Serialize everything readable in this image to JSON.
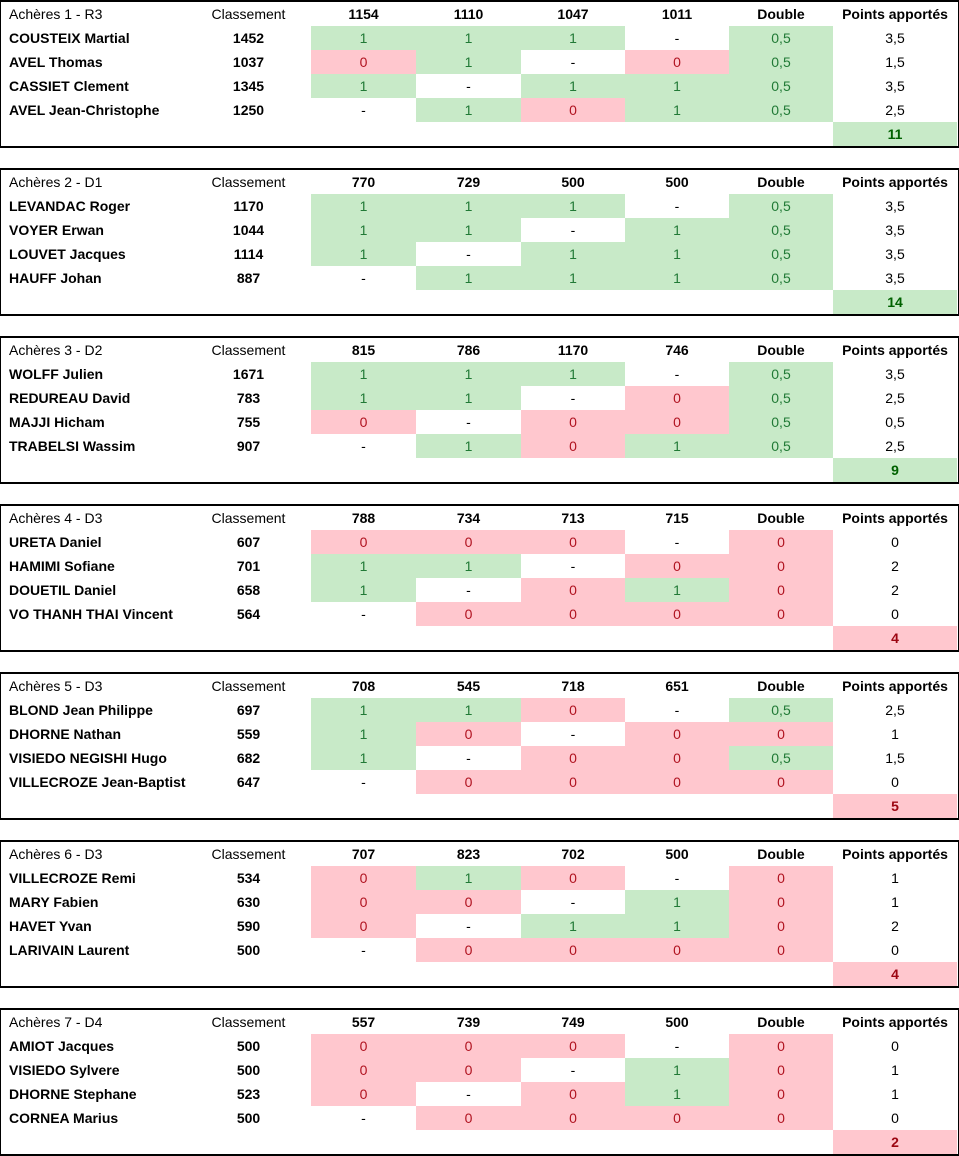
{
  "labels": {
    "classement": "Classement",
    "double": "Double",
    "points": "Points apportés"
  },
  "colors": {
    "win_bg": "#c8eac8",
    "win_text": "#217a36",
    "win_total_text": "#006100",
    "loss_bg": "#ffc7ce",
    "loss_text": "#b01320",
    "loss_total_text": "#9c0612",
    "border": "#000000"
  },
  "blocks": [
    {
      "title": "Achères 1 - R3",
      "opponents": [
        "1154",
        "1110",
        "1047",
        "1011"
      ],
      "players": [
        {
          "name": "COUSTEIX Martial",
          "classement": "1452",
          "results": [
            {
              "v": "1",
              "s": "w"
            },
            {
              "v": "1",
              "s": "w"
            },
            {
              "v": "1",
              "s": "w"
            },
            {
              "v": "-",
              "s": "n"
            },
            {
              "v": "0,5",
              "s": "w"
            }
          ],
          "points": "3,5"
        },
        {
          "name": "AVEL Thomas",
          "classement": "1037",
          "results": [
            {
              "v": "0",
              "s": "l"
            },
            {
              "v": "1",
              "s": "w"
            },
            {
              "v": "-",
              "s": "n"
            },
            {
              "v": "0",
              "s": "l"
            },
            {
              "v": "0,5",
              "s": "w"
            }
          ],
          "points": "1,5"
        },
        {
          "name": "CASSIET Clement",
          "classement": "1345",
          "results": [
            {
              "v": "1",
              "s": "w"
            },
            {
              "v": "-",
              "s": "n"
            },
            {
              "v": "1",
              "s": "w"
            },
            {
              "v": "1",
              "s": "w"
            },
            {
              "v": "0,5",
              "s": "w"
            }
          ],
          "points": "3,5"
        },
        {
          "name": "AVEL Jean-Christophe",
          "classement": "1250",
          "results": [
            {
              "v": "-",
              "s": "n"
            },
            {
              "v": "1",
              "s": "w"
            },
            {
              "v": "0",
              "s": "l"
            },
            {
              "v": "1",
              "s": "w"
            },
            {
              "v": "0,5",
              "s": "w"
            }
          ],
          "points": "2,5"
        }
      ],
      "total": {
        "value": "11",
        "s": "w"
      }
    },
    {
      "title": "Achères 2 - D1",
      "opponents": [
        "770",
        "729",
        "500",
        "500"
      ],
      "players": [
        {
          "name": "LEVANDAC Roger",
          "classement": "1170",
          "results": [
            {
              "v": "1",
              "s": "w"
            },
            {
              "v": "1",
              "s": "w"
            },
            {
              "v": "1",
              "s": "w"
            },
            {
              "v": "-",
              "s": "n"
            },
            {
              "v": "0,5",
              "s": "w"
            }
          ],
          "points": "3,5"
        },
        {
          "name": "VOYER Erwan",
          "classement": "1044",
          "results": [
            {
              "v": "1",
              "s": "w"
            },
            {
              "v": "1",
              "s": "w"
            },
            {
              "v": "-",
              "s": "n"
            },
            {
              "v": "1",
              "s": "w"
            },
            {
              "v": "0,5",
              "s": "w"
            }
          ],
          "points": "3,5"
        },
        {
          "name": "LOUVET Jacques",
          "classement": "1114",
          "results": [
            {
              "v": "1",
              "s": "w"
            },
            {
              "v": "-",
              "s": "n"
            },
            {
              "v": "1",
              "s": "w"
            },
            {
              "v": "1",
              "s": "w"
            },
            {
              "v": "0,5",
              "s": "w"
            }
          ],
          "points": "3,5"
        },
        {
          "name": "HAUFF Johan",
          "classement": "887",
          "results": [
            {
              "v": "-",
              "s": "n"
            },
            {
              "v": "1",
              "s": "w"
            },
            {
              "v": "1",
              "s": "w"
            },
            {
              "v": "1",
              "s": "w"
            },
            {
              "v": "0,5",
              "s": "w"
            }
          ],
          "points": "3,5"
        }
      ],
      "total": {
        "value": "14",
        "s": "w"
      }
    },
    {
      "title": "Achères 3 - D2",
      "opponents": [
        "815",
        "786",
        "1170",
        "746"
      ],
      "players": [
        {
          "name": "WOLFF Julien",
          "classement": "1671",
          "results": [
            {
              "v": "1",
              "s": "w"
            },
            {
              "v": "1",
              "s": "w"
            },
            {
              "v": "1",
              "s": "w"
            },
            {
              "v": "-",
              "s": "n"
            },
            {
              "v": "0,5",
              "s": "w"
            }
          ],
          "points": "3,5"
        },
        {
          "name": "REDUREAU David",
          "classement": "783",
          "results": [
            {
              "v": "1",
              "s": "w"
            },
            {
              "v": "1",
              "s": "w"
            },
            {
              "v": "-",
              "s": "n"
            },
            {
              "v": "0",
              "s": "l"
            },
            {
              "v": "0,5",
              "s": "w"
            }
          ],
          "points": "2,5"
        },
        {
          "name": "MAJJI Hicham",
          "classement": "755",
          "results": [
            {
              "v": "0",
              "s": "l"
            },
            {
              "v": "-",
              "s": "n"
            },
            {
              "v": "0",
              "s": "l"
            },
            {
              "v": "0",
              "s": "l"
            },
            {
              "v": "0,5",
              "s": "w"
            }
          ],
          "points": "0,5"
        },
        {
          "name": "TRABELSI Wassim",
          "classement": "907",
          "results": [
            {
              "v": "-",
              "s": "n"
            },
            {
              "v": "1",
              "s": "w"
            },
            {
              "v": "0",
              "s": "l"
            },
            {
              "v": "1",
              "s": "w"
            },
            {
              "v": "0,5",
              "s": "w"
            }
          ],
          "points": "2,5"
        }
      ],
      "total": {
        "value": "9",
        "s": "w"
      }
    },
    {
      "title": "Achères 4 - D3",
      "opponents": [
        "788",
        "734",
        "713",
        "715"
      ],
      "players": [
        {
          "name": "URETA Daniel",
          "classement": "607",
          "results": [
            {
              "v": "0",
              "s": "l"
            },
            {
              "v": "0",
              "s": "l"
            },
            {
              "v": "0",
              "s": "l"
            },
            {
              "v": "-",
              "s": "n"
            },
            {
              "v": "0",
              "s": "l"
            }
          ],
          "points": "0"
        },
        {
          "name": "HAMIMI Sofiane",
          "classement": "701",
          "results": [
            {
              "v": "1",
              "s": "w"
            },
            {
              "v": "1",
              "s": "w"
            },
            {
              "v": "-",
              "s": "n"
            },
            {
              "v": "0",
              "s": "l"
            },
            {
              "v": "0",
              "s": "l"
            }
          ],
          "points": "2"
        },
        {
          "name": "DOUETIL Daniel",
          "classement": "658",
          "results": [
            {
              "v": "1",
              "s": "w"
            },
            {
              "v": "-",
              "s": "n"
            },
            {
              "v": "0",
              "s": "l"
            },
            {
              "v": "1",
              "s": "w"
            },
            {
              "v": "0",
              "s": "l"
            }
          ],
          "points": "2"
        },
        {
          "name": "VO THANH THAI Vincent",
          "classement": "564",
          "results": [
            {
              "v": "-",
              "s": "n"
            },
            {
              "v": "0",
              "s": "l"
            },
            {
              "v": "0",
              "s": "l"
            },
            {
              "v": "0",
              "s": "l"
            },
            {
              "v": "0",
              "s": "l"
            }
          ],
          "points": "0"
        }
      ],
      "total": {
        "value": "4",
        "s": "l"
      }
    },
    {
      "title": "Achères 5 - D3",
      "opponents": [
        "708",
        "545",
        "718",
        "651"
      ],
      "players": [
        {
          "name": "BLOND Jean Philippe",
          "classement": "697",
          "results": [
            {
              "v": "1",
              "s": "w"
            },
            {
              "v": "1",
              "s": "w"
            },
            {
              "v": "0",
              "s": "l"
            },
            {
              "v": "-",
              "s": "n"
            },
            {
              "v": "0,5",
              "s": "w"
            }
          ],
          "points": "2,5"
        },
        {
          "name": "DHORNE Nathan",
          "classement": "559",
          "results": [
            {
              "v": "1",
              "s": "w"
            },
            {
              "v": "0",
              "s": "l"
            },
            {
              "v": "-",
              "s": "n"
            },
            {
              "v": "0",
              "s": "l"
            },
            {
              "v": "0",
              "s": "l"
            }
          ],
          "points": "1"
        },
        {
          "name": "VISIEDO NEGISHI Hugo",
          "classement": "682",
          "results": [
            {
              "v": "1",
              "s": "w"
            },
            {
              "v": "-",
              "s": "n"
            },
            {
              "v": "0",
              "s": "l"
            },
            {
              "v": "0",
              "s": "l"
            },
            {
              "v": "0,5",
              "s": "w"
            }
          ],
          "points": "1,5"
        },
        {
          "name": "VILLECROZE Jean-Baptiste",
          "classement": "647",
          "results": [
            {
              "v": "-",
              "s": "n"
            },
            {
              "v": "0",
              "s": "l"
            },
            {
              "v": "0",
              "s": "l"
            },
            {
              "v": "0",
              "s": "l"
            },
            {
              "v": "0",
              "s": "l"
            }
          ],
          "points": "0"
        }
      ],
      "total": {
        "value": "5",
        "s": "l"
      }
    },
    {
      "title": "Achères 6 - D3",
      "opponents": [
        "707",
        "823",
        "702",
        "500"
      ],
      "players": [
        {
          "name": "VILLECROZE Remi",
          "classement": "534",
          "results": [
            {
              "v": "0",
              "s": "l"
            },
            {
              "v": "1",
              "s": "w"
            },
            {
              "v": "0",
              "s": "l"
            },
            {
              "v": "-",
              "s": "n"
            },
            {
              "v": "0",
              "s": "l"
            }
          ],
          "points": "1"
        },
        {
          "name": "MARY Fabien",
          "classement": "630",
          "results": [
            {
              "v": "0",
              "s": "l"
            },
            {
              "v": "0",
              "s": "l"
            },
            {
              "v": "-",
              "s": "n"
            },
            {
              "v": "1",
              "s": "w"
            },
            {
              "v": "0",
              "s": "l"
            }
          ],
          "points": "1"
        },
        {
          "name": "HAVET Yvan",
          "classement": "590",
          "results": [
            {
              "v": "0",
              "s": "l"
            },
            {
              "v": "-",
              "s": "n"
            },
            {
              "v": "1",
              "s": "w"
            },
            {
              "v": "1",
              "s": "w"
            },
            {
              "v": "0",
              "s": "l"
            }
          ],
          "points": "2"
        },
        {
          "name": "LARIVAIN Laurent",
          "classement": "500",
          "results": [
            {
              "v": "-",
              "s": "n"
            },
            {
              "v": "0",
              "s": "l"
            },
            {
              "v": "0",
              "s": "l"
            },
            {
              "v": "0",
              "s": "l"
            },
            {
              "v": "0",
              "s": "l"
            }
          ],
          "points": "0"
        }
      ],
      "total": {
        "value": "4",
        "s": "l"
      }
    },
    {
      "title": "Achères 7 - D4",
      "opponents": [
        "557",
        "739",
        "749",
        "500"
      ],
      "players": [
        {
          "name": "AMIOT Jacques",
          "classement": "500",
          "results": [
            {
              "v": "0",
              "s": "l"
            },
            {
              "v": "0",
              "s": "l"
            },
            {
              "v": "0",
              "s": "l"
            },
            {
              "v": "-",
              "s": "n"
            },
            {
              "v": "0",
              "s": "l"
            }
          ],
          "points": "0"
        },
        {
          "name": "VISIEDO Sylvere",
          "classement": "500",
          "results": [
            {
              "v": "0",
              "s": "l"
            },
            {
              "v": "0",
              "s": "l"
            },
            {
              "v": "-",
              "s": "n"
            },
            {
              "v": "1",
              "s": "w"
            },
            {
              "v": "0",
              "s": "l"
            }
          ],
          "points": "1"
        },
        {
          "name": "DHORNE Stephane",
          "classement": "523",
          "results": [
            {
              "v": "0",
              "s": "l"
            },
            {
              "v": "-",
              "s": "n"
            },
            {
              "v": "0",
              "s": "l"
            },
            {
              "v": "1",
              "s": "w"
            },
            {
              "v": "0",
              "s": "l"
            }
          ],
          "points": "1"
        },
        {
          "name": "CORNEA Marius",
          "classement": "500",
          "results": [
            {
              "v": "-",
              "s": "n"
            },
            {
              "v": "0",
              "s": "l"
            },
            {
              "v": "0",
              "s": "l"
            },
            {
              "v": "0",
              "s": "l"
            },
            {
              "v": "0",
              "s": "l"
            }
          ],
          "points": "0"
        }
      ],
      "total": {
        "value": "2",
        "s": "l"
      }
    }
  ]
}
